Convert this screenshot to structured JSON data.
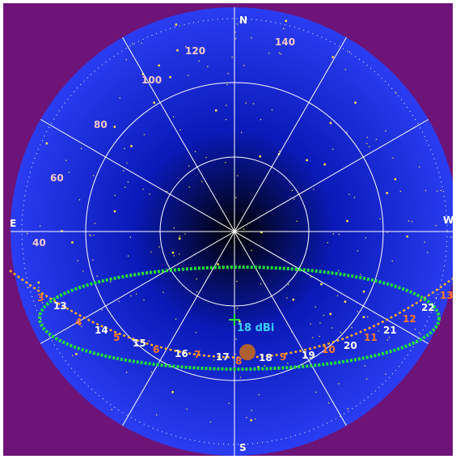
{
  "colors": {
    "frame": "#6e1377",
    "sky_center": "#000000",
    "sky_mid": "#0a1ab8",
    "sky_edge": "#2a3df2",
    "grid": "#ffffff",
    "star": "#ffe44a",
    "ecliptic": "#ffb020",
    "antenna_pattern": "#22e03a",
    "direction_label": "#ffffff",
    "azimuth_scale_label": "#f2c8c8",
    "hour_label_white": "#ffffff",
    "hour_label_orange": "#ff7a2a",
    "gain_label": "#38d0ff",
    "sun": "#b06030"
  },
  "compass": {
    "north": "N",
    "south": "S",
    "east": "E",
    "west": "W"
  },
  "azimuth_scale_labels": [
    "40",
    "60",
    "80",
    "100",
    "120",
    "140"
  ],
  "hour_marks_white": [
    "13",
    "14",
    "15",
    "16",
    "17",
    "18",
    "19",
    "20",
    "21",
    "22"
  ],
  "hour_marks_orange": [
    "3",
    "4",
    "5",
    "6",
    "7",
    "8",
    "9",
    "10",
    "11",
    "12",
    "13"
  ],
  "antenna": {
    "gain_label": "18 dBi",
    "pointing_marker_icon": "crosshair-icon"
  },
  "sun_icon": "sun-disc-icon"
}
